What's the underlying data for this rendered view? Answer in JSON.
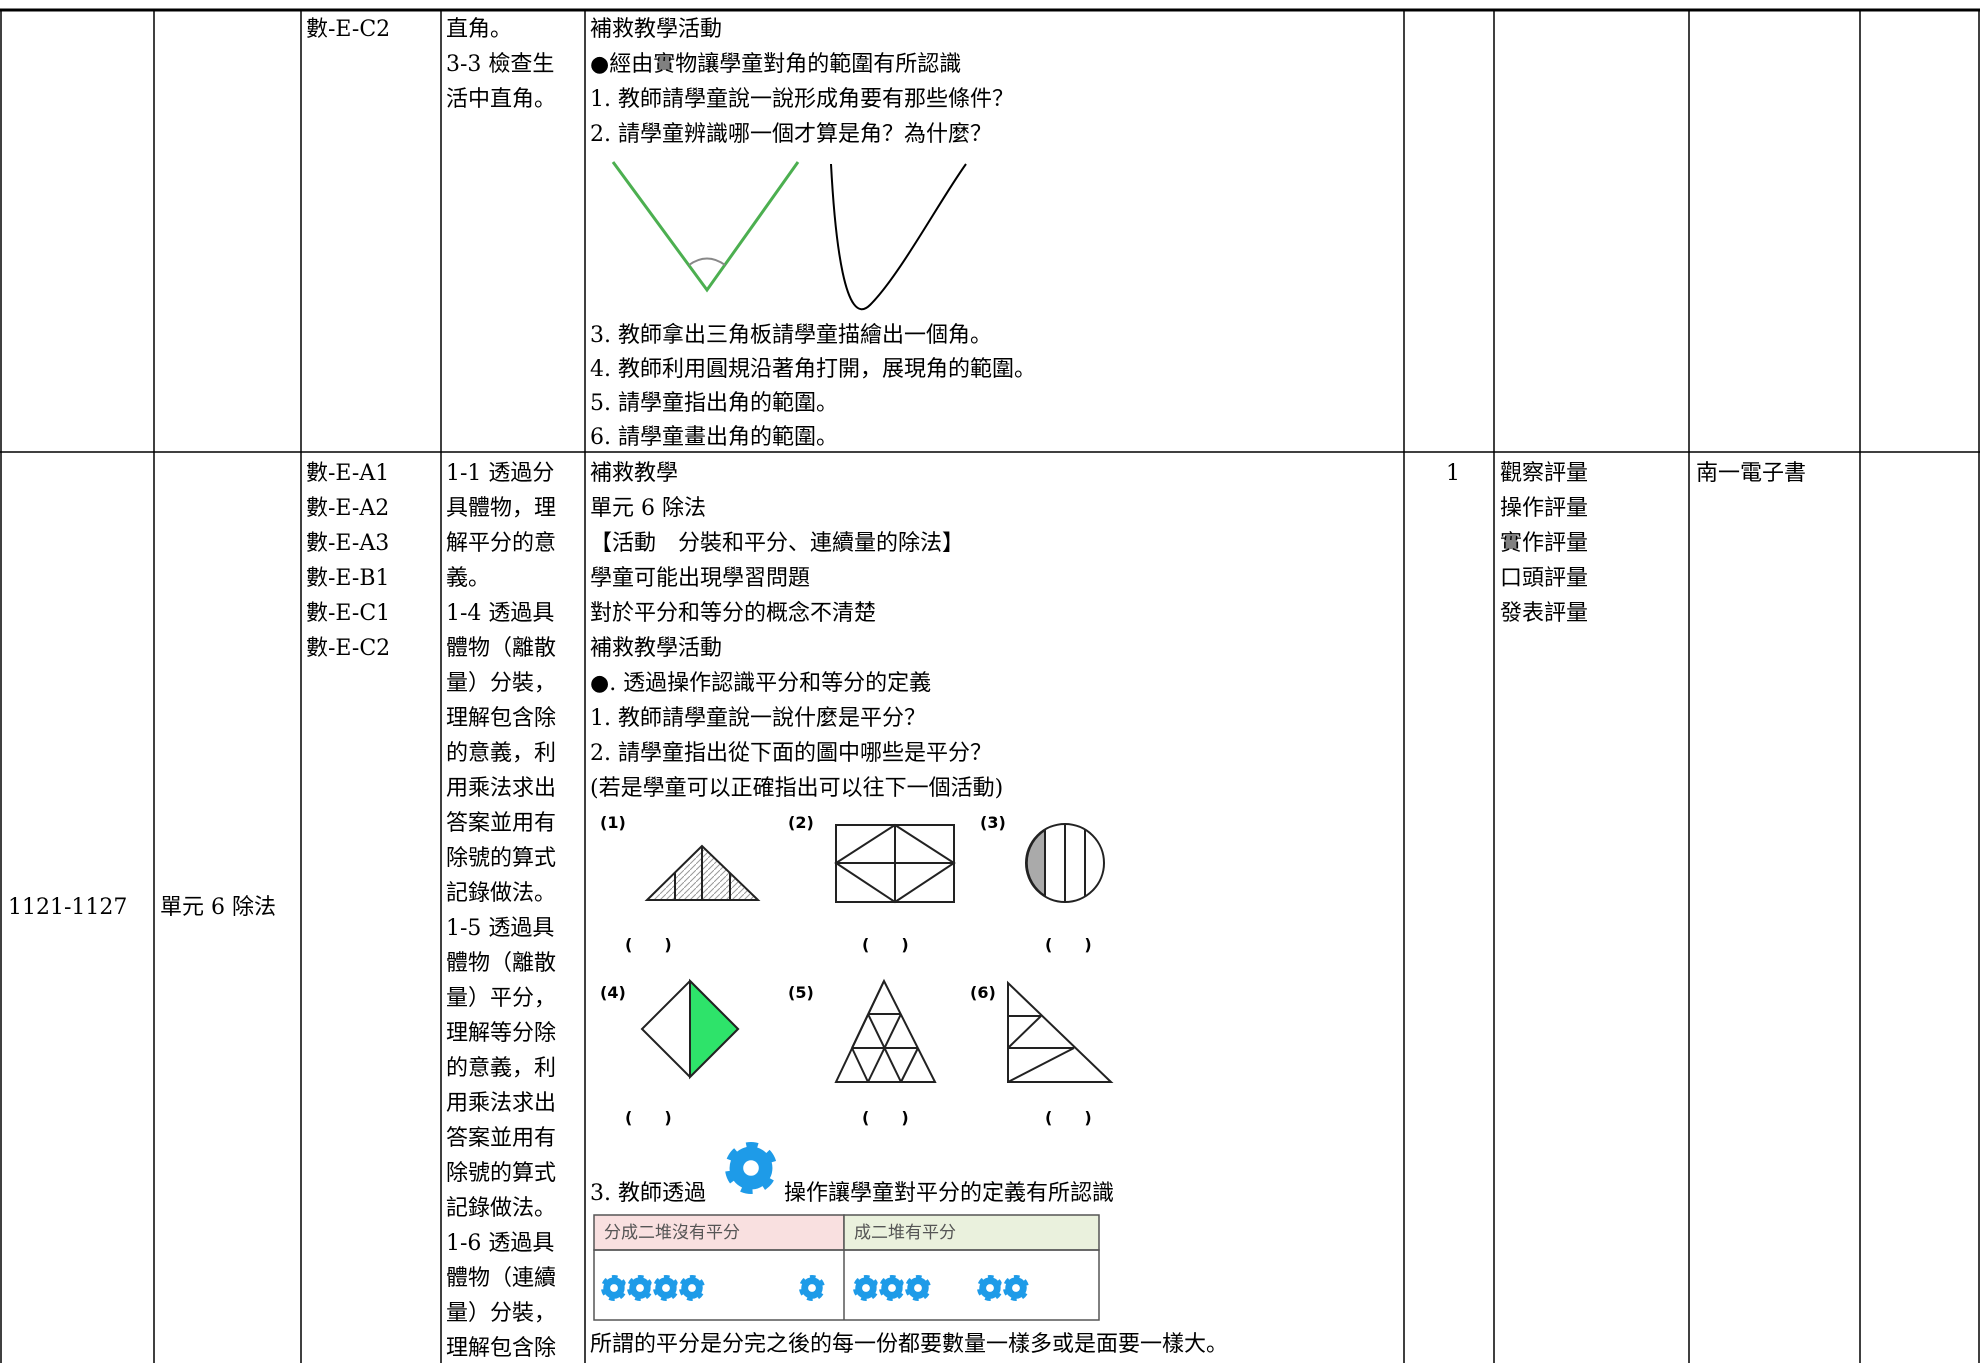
{
  "table": {
    "rows": [
      {
        "code": [
          "數-E-C2"
        ],
        "objective": [
          "直角。",
          "3-3 檢查生",
          "活中直角。"
        ],
        "activity_top": [
          "補救教學活動",
          "●經由實物讓學童對角的範圍有所認識",
          "1. 教師請學童說一說形成角要有那些條件？",
          "2. 請學童辨識哪一個才算是角？為什麼？"
        ],
        "activity_bottom": [
          "3. 教師拿出三角板請學童描繪出一個角。",
          "4. 教師利用圓規沿著角打開，展現角的範圍。",
          "5. 請學童指出角的範圍。",
          "6. 請學童畫出角的範圍。"
        ]
      },
      {
        "week": "1121-1127",
        "unit": "單元 6 除法",
        "code": [
          "數-E-A1",
          "數-E-A2",
          "數-E-A3",
          "數-E-B1",
          "數-E-C1",
          "數-E-C2"
        ],
        "objective": [
          "1-1 透過分",
          "具體物，理",
          "解平分的意",
          "義。",
          "1-4 透過具",
          "體物（離散",
          "量）分裝，",
          "理解包含除",
          "的意義，利",
          "用乘法求出",
          "答案並用有",
          "除號的算式",
          "記錄做法。",
          "1-5 透過具",
          "體物（離散",
          "量）平分，",
          "理解等分除",
          "的意義，利",
          "用乘法求出",
          "答案並用有",
          "除號的算式",
          "記錄做法。",
          "1-6 透過具",
          "體物（連續",
          "量）分裝，",
          "理解包含除"
        ],
        "activity": [
          "補救教學",
          "單元 6 除法",
          "【活動　分裝和平分、連續量的除法】",
          "學童可能出現學習問題",
          "對於平分和等分的概念不清楚",
          "補救教學活動",
          "●. 透過操作認識平分和等分的定義",
          "1. 教師請學童說一說什麼是平分？",
          "2. 請學童指出從下面的圖中哪些是平分？",
          "(若是學童可以正確指出可以往下一個活動)"
        ],
        "figure_labels": [
          "(1)",
          "(2)",
          "(3)",
          "(4)",
          "(5)",
          "(6)"
        ],
        "blanks": [
          "(　　)",
          "(　　)",
          "(　　)",
          "(　　)",
          "(　　)",
          "(　　)"
        ],
        "step3_before": "3. 教師透過",
        "step3_after": "操作讓學童對平分的定義有所認識",
        "compare_headers": [
          "分成二堆沒有平分",
          "成二堆有平分"
        ],
        "conclusion": "所謂的平分是分完之後的每一份都要數量一樣多或是面要一樣大。",
        "periods": "1",
        "assessment": [
          "觀察評量",
          "操作評量",
          "實作評量",
          "口頭評量",
          "發表評量"
        ],
        "resources": "南一電子書"
      }
    ]
  }
}
